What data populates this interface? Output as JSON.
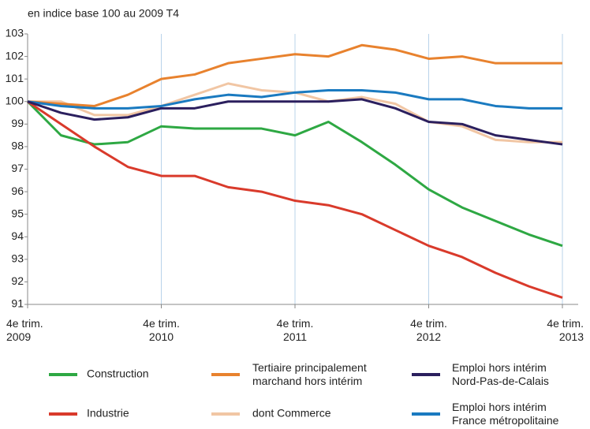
{
  "chart_data": {
    "type": "line",
    "subtitle": "en indice base 100 au 2009 T4",
    "categories": [
      "4e trim. 2009",
      null,
      null,
      null,
      "4e trim. 2010",
      null,
      null,
      null,
      "4e trim. 2011",
      null,
      null,
      null,
      "4e trim. 2012",
      null,
      null,
      null,
      "4e trim. 2013"
    ],
    "ylim": [
      91,
      103
    ],
    "yticks": [
      91,
      92,
      93,
      94,
      95,
      96,
      97,
      98,
      99,
      100,
      101,
      102,
      103
    ],
    "grid": true,
    "series": [
      {
        "name": "Construction",
        "color": "#2ea843",
        "values": [
          100,
          98.5,
          98.1,
          98.2,
          98.9,
          98.8,
          98.8,
          98.8,
          98.5,
          99.1,
          98.2,
          97.2,
          96.1,
          95.3,
          94.7,
          94.1,
          93.6
        ]
      },
      {
        "name": "Industrie",
        "color": "#d93a2b",
        "values": [
          100,
          99.0,
          98.0,
          97.1,
          96.7,
          96.7,
          96.2,
          96.0,
          95.6,
          95.4,
          95.0,
          94.3,
          93.6,
          93.1,
          92.4,
          91.8,
          91.3
        ]
      },
      {
        "name": "Tertiaire principalement\nmarchand hors intérim",
        "color": "#e8822e",
        "values": [
          100,
          99.9,
          99.8,
          100.3,
          101.0,
          101.2,
          101.7,
          101.9,
          102.1,
          102.0,
          102.5,
          102.3,
          101.9,
          102.0,
          101.7,
          101.7,
          101.7
        ]
      },
      {
        "name": "dont Commerce",
        "color": "#f1c6a4",
        "values": [
          100,
          100.0,
          99.4,
          99.4,
          99.8,
          100.3,
          100.8,
          100.5,
          100.4,
          100.0,
          100.2,
          99.9,
          99.1,
          98.9,
          98.3,
          98.2,
          98.2
        ]
      },
      {
        "name": "Emploi hors intérim\nNord-Pas-de-Calais",
        "color": "#2b1f5e",
        "values": [
          100,
          99.5,
          99.2,
          99.3,
          99.7,
          99.7,
          100.0,
          100.0,
          100.0,
          100.0,
          100.1,
          99.7,
          99.1,
          99.0,
          98.5,
          98.3,
          98.1
        ]
      },
      {
        "name": "Emploi hors intérim\nFrance métropolitaine",
        "color": "#1a7ac0",
        "values": [
          100,
          99.8,
          99.7,
          99.7,
          99.8,
          100.1,
          100.3,
          100.2,
          100.4,
          100.5,
          100.5,
          100.4,
          100.1,
          100.1,
          99.8,
          99.7,
          99.7
        ]
      }
    ]
  }
}
